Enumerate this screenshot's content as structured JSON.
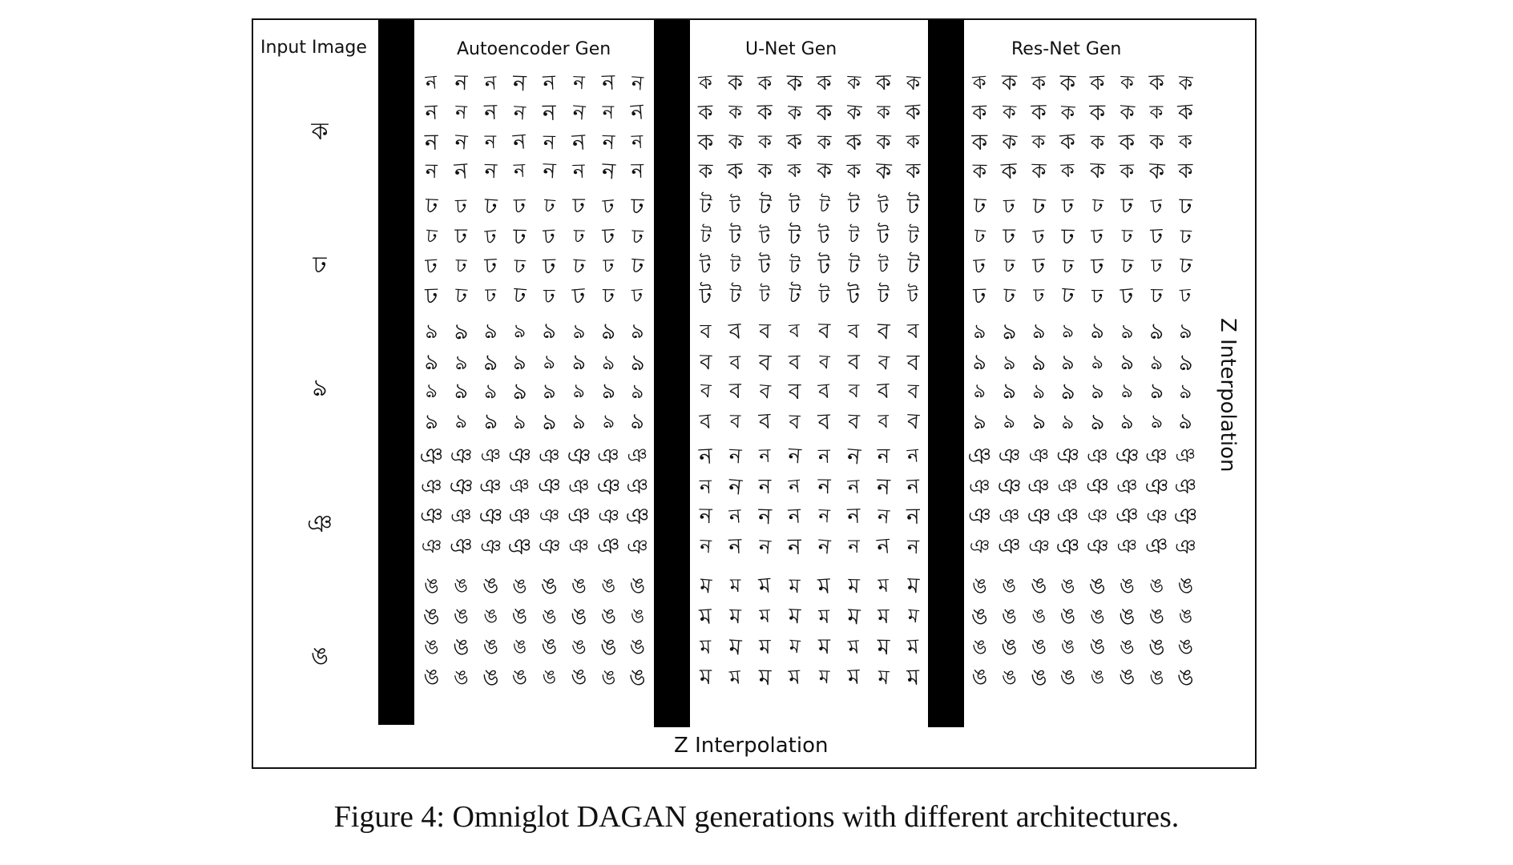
{
  "figure": {
    "input_label": "Input Image",
    "columns": [
      {
        "key": "autoencoder",
        "title": "Autoencoder Gen"
      },
      {
        "key": "unet",
        "title": "U-Net Gen"
      },
      {
        "key": "resnet",
        "title": "Res-Net Gen"
      }
    ],
    "input_glyphs": [
      "ক",
      "ঢ",
      "ঌ",
      "ঞ",
      "ঙ"
    ],
    "row_glyphs": {
      "autoencoder": [
        "ন",
        "ঢ",
        "ঌ",
        "ঞ",
        "ঙ"
      ],
      "unet": [
        "ক",
        "ট",
        "ব",
        "ন",
        "ম"
      ],
      "resnet": [
        "ক",
        "ঢ",
        "ঌ",
        "ঞ",
        "ঙ"
      ]
    },
    "z_interp_bottom": "Z Interpolation",
    "z_interp_right": "Z Interpolation"
  },
  "caption": "Figure 4: Omniglot DAGAN generations with different architectures."
}
